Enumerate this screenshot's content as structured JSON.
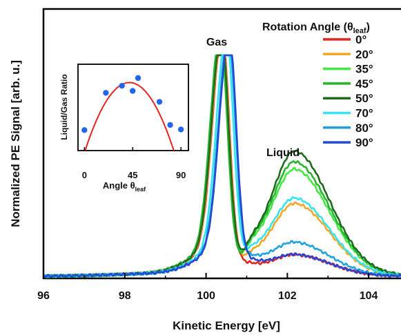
{
  "chart_data": {
    "type": "line",
    "xlabel": "Kinetic Energy [eV]",
    "ylabel": "Normalized PE Signal [arb. u.]",
    "xlim": [
      96,
      105
    ],
    "x_ticks": [
      "96",
      "98",
      "100",
      "102",
      "104"
    ],
    "grid": false,
    "legend": {
      "title": "Rotation Angle (θ",
      "title_sub": "leaf",
      "title_end": ")",
      "placement": "top-right"
    },
    "annotations": {
      "peak1": "Gas",
      "peak2": "Liquid"
    },
    "series": [
      {
        "name": "0°",
        "color": "#e8231f",
        "liquid_peak": 0.09
      },
      {
        "name": "20°",
        "color": "#f5a623",
        "liquid_peak": 0.31
      },
      {
        "name": "35°",
        "color": "#44e844",
        "liquid_peak": 0.45
      },
      {
        "name": "45°",
        "color": "#24b92a",
        "liquid_peak": 0.48
      },
      {
        "name": "50°",
        "color": "#1f6b1d",
        "liquid_peak": 0.53
      },
      {
        "name": "70°",
        "color": "#34e4ef",
        "liquid_peak": 0.33
      },
      {
        "name": "80°",
        "color": "#1ea3df",
        "liquid_peak": 0.14
      },
      {
        "name": "90°",
        "color": "#2447d4",
        "liquid_peak": 0.09
      }
    ],
    "inset": {
      "type": "scatter",
      "xlabel": "Angle θ",
      "xlabel_sub": "leaf",
      "ylabel": "Liquid/Gas Ratio",
      "x_ticks": [
        "0",
        "45",
        "90"
      ],
      "xlim": [
        -6,
        97
      ],
      "ylim": [
        0,
        1
      ],
      "points": [
        {
          "x": 0,
          "y": 0.19
        },
        {
          "x": 20,
          "y": 0.77
        },
        {
          "x": 35,
          "y": 0.88
        },
        {
          "x": 45,
          "y": 0.8
        },
        {
          "x": 50,
          "y": 1.0
        },
        {
          "x": 70,
          "y": 0.63
        },
        {
          "x": 80,
          "y": 0.27
        },
        {
          "x": 90,
          "y": 0.2
        }
      ],
      "fit_color": "#e8231f",
      "point_color": "#2266ee"
    }
  }
}
